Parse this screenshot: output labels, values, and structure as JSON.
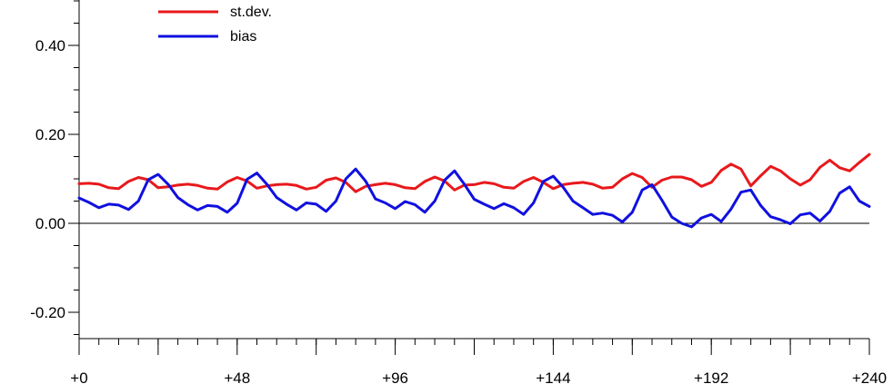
{
  "chart_data": {
    "type": "line",
    "title": "",
    "xlabel": "",
    "ylabel": "",
    "xlim": [
      0,
      240
    ],
    "ylim": [
      -0.26,
      0.5
    ],
    "x_ticks": [
      0,
      48,
      96,
      144,
      192,
      240
    ],
    "x_tick_labels": [
      "+0",
      "+48",
      "+96",
      "+144",
      "+192",
      "+240"
    ],
    "y_ticks": [
      0.4,
      0.2,
      0.0,
      -0.2
    ],
    "y_tick_labels": [
      "0.40",
      "0.20",
      "0.00",
      "-0.20"
    ],
    "zero_line": true,
    "grid": false,
    "legend_position": "top-left",
    "colors": {
      "st_dev": "#e8191c",
      "bias": "#1010e0"
    },
    "x": [
      0,
      3,
      6,
      9,
      12,
      15,
      18,
      21,
      24,
      27,
      30,
      33,
      36,
      39,
      42,
      45,
      48,
      51,
      54,
      57,
      60,
      63,
      66,
      69,
      72,
      75,
      78,
      81,
      84,
      87,
      90,
      93,
      96,
      99,
      102,
      105,
      108,
      111,
      114,
      117,
      120,
      123,
      126,
      129,
      132,
      135,
      138,
      141,
      144,
      147,
      150,
      153,
      156,
      159,
      162,
      165,
      168,
      171,
      174,
      177,
      180,
      183,
      186,
      189,
      192,
      195,
      198,
      201,
      204,
      207,
      210,
      213,
      216,
      219,
      222,
      225,
      228,
      231,
      234,
      237,
      240
    ],
    "series": [
      {
        "name": "st.dev.",
        "color": "#e8191c",
        "values": [
          0.089,
          0.09,
          0.088,
          0.08,
          0.078,
          0.094,
          0.103,
          0.098,
          0.08,
          0.082,
          0.086,
          0.088,
          0.085,
          0.079,
          0.077,
          0.093,
          0.103,
          0.095,
          0.079,
          0.084,
          0.087,
          0.088,
          0.085,
          0.077,
          0.081,
          0.097,
          0.102,
          0.092,
          0.071,
          0.083,
          0.087,
          0.09,
          0.087,
          0.08,
          0.078,
          0.094,
          0.104,
          0.095,
          0.075,
          0.086,
          0.087,
          0.092,
          0.089,
          0.081,
          0.079,
          0.094,
          0.103,
          0.092,
          0.078,
          0.087,
          0.09,
          0.092,
          0.088,
          0.079,
          0.081,
          0.1,
          0.112,
          0.103,
          0.081,
          0.097,
          0.104,
          0.104,
          0.098,
          0.083,
          0.092,
          0.119,
          0.133,
          0.122,
          0.084,
          0.107,
          0.128,
          0.118,
          0.1,
          0.086,
          0.098,
          0.126,
          0.142,
          0.125,
          0.118,
          0.137,
          0.155
        ]
      },
      {
        "name": "bias",
        "color": "#1010e0",
        "values": [
          0.057,
          0.047,
          0.035,
          0.043,
          0.041,
          0.031,
          0.05,
          0.098,
          0.11,
          0.088,
          0.058,
          0.042,
          0.03,
          0.04,
          0.038,
          0.025,
          0.045,
          0.099,
          0.113,
          0.088,
          0.058,
          0.043,
          0.03,
          0.046,
          0.043,
          0.027,
          0.05,
          0.1,
          0.122,
          0.095,
          0.055,
          0.046,
          0.033,
          0.049,
          0.042,
          0.025,
          0.05,
          0.097,
          0.118,
          0.088,
          0.054,
          0.043,
          0.033,
          0.044,
          0.035,
          0.02,
          0.046,
          0.094,
          0.106,
          0.081,
          0.05,
          0.035,
          0.02,
          0.023,
          0.018,
          0.003,
          0.025,
          0.075,
          0.087,
          0.052,
          0.014,
          0.0,
          -0.008,
          0.012,
          0.02,
          0.004,
          0.032,
          0.07,
          0.075,
          0.04,
          0.015,
          0.008,
          -0.001,
          0.019,
          0.023,
          0.005,
          0.027,
          0.068,
          0.082,
          0.05,
          0.038
        ]
      }
    ]
  }
}
